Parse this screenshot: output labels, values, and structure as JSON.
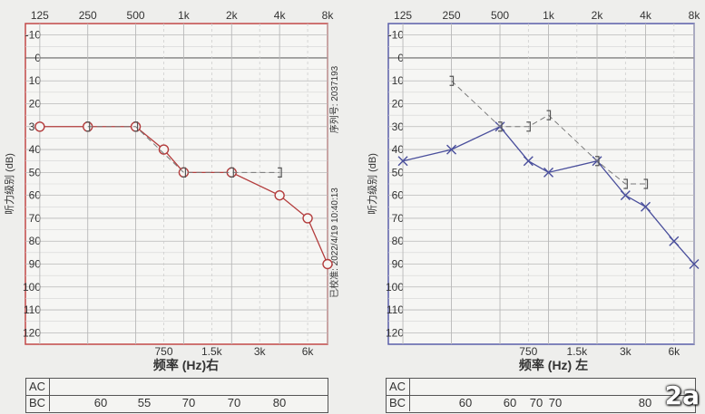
{
  "colors": {
    "right_ear": "#b33c3c",
    "left_ear": "#4a4f9c",
    "grid": "#b8b8b8",
    "frame_right": "#c24848",
    "frame_left": "#5a5faa"
  },
  "badge": "2a",
  "panels": [
    {
      "id": "right",
      "ylabel": "听力级别 (dB)",
      "xlabel": "频率 (Hz)右",
      "x_ticks_top": [
        "125",
        "250",
        "500",
        "1k",
        "2k",
        "4k",
        "8k"
      ],
      "x_ticks_bottom": [
        "750",
        "1.5k",
        "3k",
        "6k"
      ],
      "y_ticks": [
        "-10",
        "0",
        "10",
        "20",
        "30",
        "40",
        "50",
        "60",
        "70",
        "80",
        "90",
        "100",
        "110",
        "120"
      ],
      "side_texts": [
        "序列号: 2037193",
        "已校准: 2022/4/19 10:40:13"
      ],
      "table": {
        "ac_label": "AC",
        "bc_label": "BC",
        "bc_values": [
          "60",
          "55",
          "70",
          "70",
          "80"
        ]
      }
    },
    {
      "id": "left",
      "ylabel": "听力级别 (dB)",
      "xlabel": "频率 (Hz) 左",
      "x_ticks_top": [
        "125",
        "250",
        "500",
        "1k",
        "2k",
        "4k",
        "8k"
      ],
      "x_ticks_bottom": [
        "750",
        "1.5k",
        "3k",
        "6k"
      ],
      "y_ticks": [
        "-10",
        "0",
        "10",
        "20",
        "30",
        "40",
        "50",
        "60",
        "70",
        "80",
        "90",
        "100",
        "110",
        "120"
      ],
      "table": {
        "ac_label": "AC",
        "bc_label": "BC",
        "bc_values": [
          "60",
          "60",
          "70",
          "70",
          "80"
        ]
      }
    }
  ],
  "chart_data": [
    {
      "type": "line",
      "xlabel": "频率 (Hz)右",
      "ylabel": "听力级别 (dB)",
      "xscale": "log2",
      "ylim": [
        -10,
        120
      ],
      "y_inverted": true,
      "grid": true,
      "series": [
        {
          "marker": "circle",
          "x": [
            125,
            250,
            500,
            750,
            1000,
            2000,
            3000,
            4000,
            6000,
            8000
          ],
          "y": [
            30,
            30,
            30,
            40,
            50,
            50,
            null,
            60,
            70,
            90
          ]
        },
        {
          "marker": "bracket",
          "x": [
            250,
            500,
            1000,
            2000,
            4000
          ],
          "y": [
            30,
            30,
            50,
            50,
            50
          ]
        }
      ]
    },
    {
      "type": "line",
      "xlabel": "频率 (Hz) 左",
      "ylabel": "听力级别 (dB)",
      "xscale": "log2",
      "ylim": [
        -10,
        120
      ],
      "y_inverted": true,
      "grid": true,
      "series": [
        {
          "marker": "cross",
          "x": [
            125,
            250,
            500,
            750,
            1000,
            2000,
            3000,
            4000,
            6000,
            8000
          ],
          "y": [
            45,
            40,
            30,
            45,
            50,
            45,
            60,
            65,
            80,
            90
          ]
        },
        {
          "marker": "bracket",
          "x": [
            250,
            500,
            750,
            1000,
            2000,
            3000,
            4000
          ],
          "y": [
            10,
            30,
            30,
            25,
            45,
            55,
            55
          ]
        }
      ]
    }
  ]
}
